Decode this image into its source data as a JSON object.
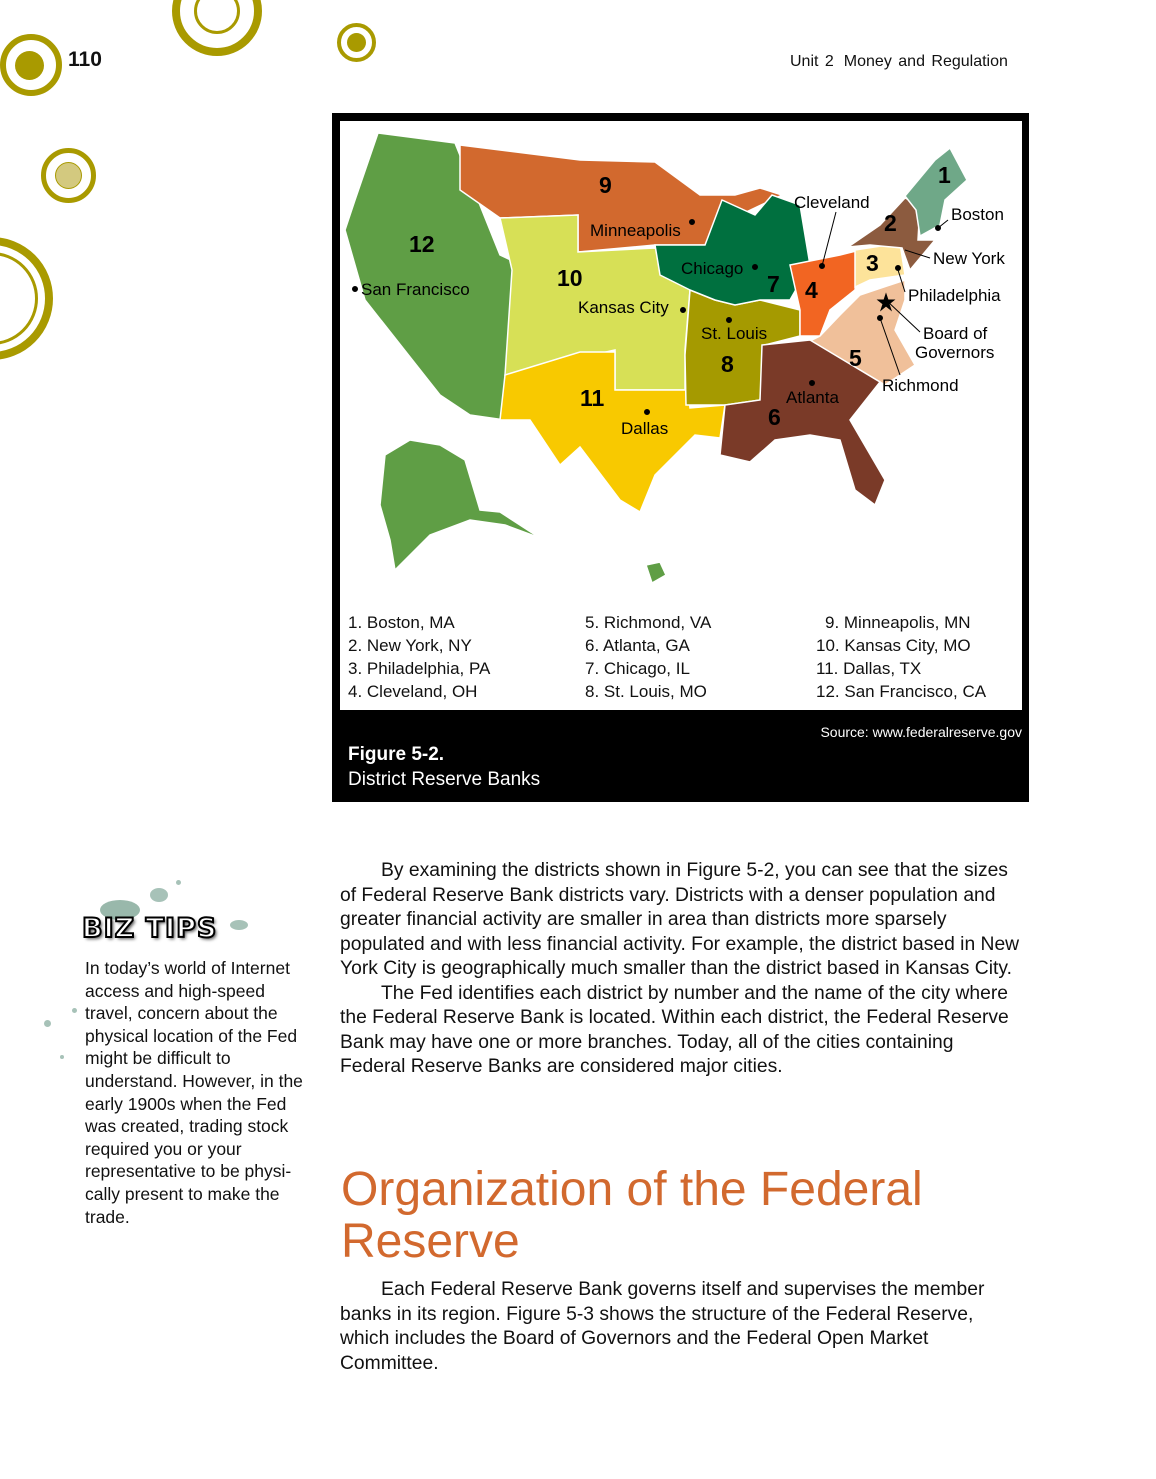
{
  "page_number": "110",
  "running_head": {
    "unit": "Unit 2",
    "title": "Money and Regulation"
  },
  "figure": {
    "map_labels": {
      "cities": [
        "San Francisco",
        "Minneapolis",
        "Kansas City",
        "Chicago",
        "Cleveland",
        "Boston",
        "New York",
        "Philadelphia",
        "Board of",
        "Governors",
        "Richmond",
        "St. Louis",
        "Atlanta",
        "Dallas"
      ],
      "districts": [
        "1",
        "2",
        "3",
        "4",
        "5",
        "6",
        "7",
        "8",
        "9",
        "10",
        "11",
        "12"
      ]
    },
    "district_colors": {
      "1": "#6fa888",
      "2": "#8c5b3f",
      "3": "#fde39a",
      "4": "#f26522",
      "5": "#f0c09a",
      "6": "#7a3a28",
      "7": "#00703f",
      "8": "#a59a00",
      "9": "#d2692e",
      "10": "#d7e056",
      "11": "#f8c900",
      "12": "#5f9e45"
    },
    "legend": [
      [
        "1. Boston, MA",
        "2. New York, NY",
        "3. Philadelphia, PA",
        "4. Cleveland, OH"
      ],
      [
        "5. Richmond, VA",
        "6. Atlanta, GA",
        "7. Chicago, IL",
        "8. St. Louis, MO"
      ],
      [
        "9. Minneapolis, MN",
        "10. Kansas City, MO",
        "11. Dallas, TX",
        "12. San Francisco, CA"
      ]
    ],
    "source": "Source: www.federalreserve.gov",
    "title": "Figure 5-2.",
    "caption": "District Reserve Banks"
  },
  "biz_tips": {
    "title": "BIZ TIPS",
    "text": "In today’s world of Internet access and high-speed travel, concern about the physical location of the Fed might be difficult to understand. However, in the early 1900s when the Fed was created, trading stock required you or your representative to be physi-cally present to make the trade."
  },
  "body": [
    "By examining the districts shown in Figure 5-2, you can see that the sizes of Federal Reserve Bank districts vary. Districts with a denser population and greater financial activity are smaller in area than districts more sparsely populated and with less financial activity. For example, the district based in New York City is geographically much smaller than the district based in Kansas City.",
    "The Fed identifies each district by number and the name of the city where the Federal Reserve Bank is located. Within each district, the Federal Reserve Bank may have one or more branches. Today, all of the cities containing Federal Reserve Banks are considered major cities."
  ],
  "section_heading": "Organization of the Federal Reserve",
  "section_body": [
    "Each Federal Reserve Bank governs itself and supervises the member banks in its region. Figure 5-3 shows the structure of the Federal Reserve, which includes the Board of Governors and the Federal Open Market Committee."
  ]
}
